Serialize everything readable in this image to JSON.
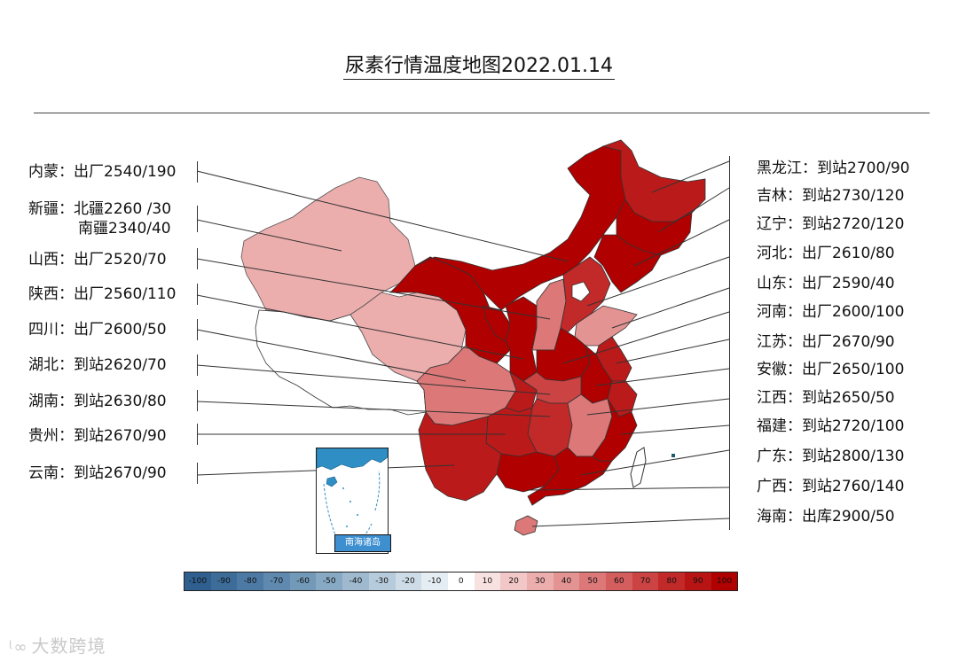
{
  "title": "尿素行情温度地图2022.01.14",
  "left_labels": [
    {
      "key": "neimeng",
      "text": "内蒙：出厂2540/190",
      "value": 190
    },
    {
      "key": "xinjiang",
      "text": "新疆：北疆2260 /30",
      "text2": "南疆2340/40",
      "value": 40
    },
    {
      "key": "shanxi",
      "text": "山西：出厂2520/70",
      "value": 70
    },
    {
      "key": "shaanxi",
      "text": "陕西：出厂2560/110",
      "value": 110
    },
    {
      "key": "sichuan",
      "text": "四川：出厂2600/50",
      "value": 50
    },
    {
      "key": "hubei",
      "text": "湖北：到站2620/70",
      "value": 70
    },
    {
      "key": "hunan",
      "text": "湖南：到站2630/80",
      "value": 80
    },
    {
      "key": "guizhou",
      "text": "贵州：到站2670/90",
      "value": 90
    },
    {
      "key": "yunnan",
      "text": "云南：到站2670/90",
      "value": 90
    }
  ],
  "right_labels": [
    {
      "key": "heilongjiang",
      "text": "黑龙江：到站2700/90",
      "value": 90
    },
    {
      "key": "jilin",
      "text": "吉林：到站2730/120",
      "value": 120
    },
    {
      "key": "liaoning",
      "text": "辽宁：到站2720/120",
      "value": 120
    },
    {
      "key": "hebei",
      "text": "河北：出厂2610/80",
      "value": 80
    },
    {
      "key": "shandong",
      "text": "山东：出厂2590/40",
      "value": 40
    },
    {
      "key": "henan",
      "text": "河南：出厂2600/100",
      "value": 100
    },
    {
      "key": "jiangsu",
      "text": "江苏：出厂2670/90",
      "value": 90
    },
    {
      "key": "anhui",
      "text": "安徽：出厂2650/100",
      "value": 100
    },
    {
      "key": "jiangxi",
      "text": "江西：到站2650/50",
      "value": 50
    },
    {
      "key": "fujian",
      "text": "福建：到站2720/100",
      "value": 100
    },
    {
      "key": "guangdong",
      "text": "广东：到站2800/130",
      "value": 130
    },
    {
      "key": "guangxi",
      "text": "广西：到站2760/140",
      "value": 140
    },
    {
      "key": "hainan",
      "text": "海南：出库2900/50",
      "value": 50
    }
  ],
  "inset_label": "南海诸岛",
  "legend": [
    {
      "label": "-100",
      "color": "#2f5f8f"
    },
    {
      "label": "-90",
      "color": "#3d6c99"
    },
    {
      "label": "-80",
      "color": "#4d7aa4"
    },
    {
      "label": "-70",
      "color": "#5f89ae"
    },
    {
      "label": "-60",
      "color": "#7399b9"
    },
    {
      "label": "-50",
      "color": "#88a9c4"
    },
    {
      "label": "-40",
      "color": "#9fbacf"
    },
    {
      "label": "-30",
      "color": "#b6cbdb"
    },
    {
      "label": "-20",
      "color": "#cddce7"
    },
    {
      "label": "-10",
      "color": "#e4edf3"
    },
    {
      "label": "0",
      "color": "#ffffff"
    },
    {
      "label": "10",
      "color": "#f8e1e1"
    },
    {
      "label": "20",
      "color": "#f2c7c7"
    },
    {
      "label": "30",
      "color": "#ecadad"
    },
    {
      "label": "40",
      "color": "#e49393"
    },
    {
      "label": "50",
      "color": "#dc7878"
    },
    {
      "label": "60",
      "color": "#d45d5d"
    },
    {
      "label": "70",
      "color": "#cb4343"
    },
    {
      "label": "80",
      "color": "#c22929"
    },
    {
      "label": "90",
      "color": "#b81414"
    },
    {
      "label": "100",
      "color": "#b00000"
    }
  ],
  "watermark": "大数跨境",
  "colors": {
    "v100": "#b00000",
    "v90": "#bb1a1a",
    "v80": "#c22929",
    "v70": "#cb4343",
    "v50": "#dc7878",
    "v40": "#e49393",
    "v30": "#ecadad",
    "v0": "#ffffff",
    "taiwan": "#ffffff"
  }
}
